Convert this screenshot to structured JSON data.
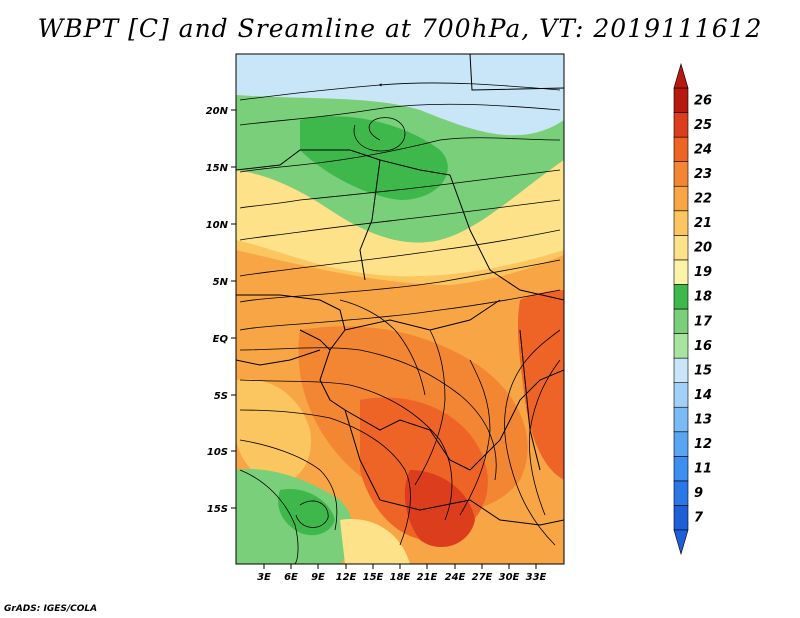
{
  "title": "WBPT [C] and Sreamline at 700hPa, VT: 2019111612",
  "footer": "GrADS: IGES/COLA",
  "map": {
    "lon_range": [
      0,
      36
    ],
    "lat_range": [
      -20,
      25
    ],
    "lat_ticks": [
      "20N",
      "15N",
      "10N",
      "5N",
      "EQ",
      "5S",
      "10S",
      "15S"
    ],
    "lon_ticks": [
      "3E",
      "6E",
      "9E",
      "12E",
      "15E",
      "18E",
      "21E",
      "24E",
      "27E",
      "30E",
      "33E"
    ]
  },
  "colorbar": {
    "labels": [
      "7",
      "9",
      "11",
      "12",
      "13",
      "14",
      "15",
      "16",
      "17",
      "18",
      "19",
      "20",
      "21",
      "22",
      "23",
      "24",
      "25",
      "26"
    ],
    "colors": [
      "#1e5fd8",
      "#2a78e8",
      "#3c8ff0",
      "#5aa5f2",
      "#7bbbf5",
      "#a2d0f7",
      "#c9e6f8",
      "#a9e3a0",
      "#7ad07a",
      "#3fb84b",
      "#fbf4a8",
      "#fde28a",
      "#fbc55f",
      "#f7a545",
      "#f28633",
      "#ee6426",
      "#dc3d1c",
      "#b5190f"
    ]
  }
}
